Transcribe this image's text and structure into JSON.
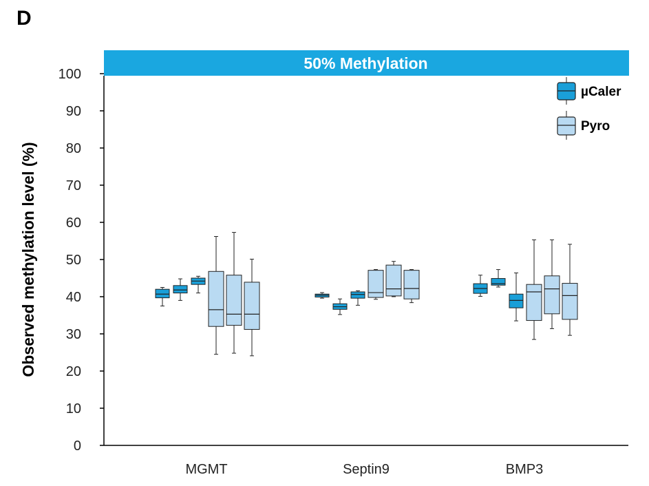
{
  "panel_label": "D",
  "colors": {
    "banner": "#1aa7e0",
    "ucaler": "#1a9fd8",
    "pyro": "#b9daf2",
    "stroke": "#222222",
    "axis": "#000000"
  },
  "chart_data": {
    "type": "box",
    "title": "50% Methylation",
    "ylabel": "Observed methylation level (%)",
    "xlabel": "",
    "ylim": [
      0,
      100
    ],
    "yticks": [
      0,
      10,
      20,
      30,
      40,
      50,
      60,
      70,
      80,
      90,
      100
    ],
    "categories": [
      "MGMT",
      "Septin9",
      "BMP3"
    ],
    "legend": [
      {
        "name": "µCaler",
        "color": "#1a9fd8"
      },
      {
        "name": "Pyro",
        "color": "#b9daf2"
      }
    ],
    "groups": [
      {
        "category": "MGMT",
        "boxes": [
          {
            "series": "µCaler",
            "min": 37.5,
            "q1": 39.7,
            "median": 40.7,
            "q3": 42.0,
            "max": 42.5
          },
          {
            "series": "µCaler",
            "min": 39.0,
            "q1": 41.0,
            "median": 41.8,
            "q3": 43.0,
            "max": 44.8
          },
          {
            "series": "µCaler",
            "min": 41.0,
            "q1": 43.3,
            "median": 44.2,
            "q3": 45.0,
            "max": 45.5
          },
          {
            "series": "Pyro",
            "min": 24.5,
            "q1": 32.0,
            "median": 36.5,
            "q3": 46.8,
            "max": 56.2
          },
          {
            "series": "Pyro",
            "min": 24.8,
            "q1": 32.3,
            "median": 35.3,
            "q3": 45.8,
            "max": 57.3
          },
          {
            "series": "Pyro",
            "min": 24.1,
            "q1": 31.2,
            "median": 35.3,
            "q3": 43.9,
            "max": 50.1
          }
        ]
      },
      {
        "category": "Septin9",
        "boxes": [
          {
            "series": "µCaler",
            "min": 39.6,
            "q1": 39.9,
            "median": 40.4,
            "q3": 40.7,
            "max": 41.1
          },
          {
            "series": "µCaler",
            "min": 35.2,
            "q1": 36.6,
            "median": 37.3,
            "q3": 38.1,
            "max": 39.4
          },
          {
            "series": "µCaler",
            "min": 37.7,
            "q1": 39.6,
            "median": 40.6,
            "q3": 41.3,
            "max": 41.6
          },
          {
            "series": "Pyro",
            "min": 39.3,
            "q1": 39.8,
            "median": 41.1,
            "q3": 47.1,
            "max": 47.3
          },
          {
            "series": "Pyro",
            "min": 40.0,
            "q1": 40.2,
            "median": 42.1,
            "q3": 48.5,
            "max": 49.5
          },
          {
            "series": "Pyro",
            "min": 38.4,
            "q1": 39.4,
            "median": 42.2,
            "q3": 47.1,
            "max": 47.3
          }
        ]
      },
      {
        "category": "BMP3",
        "boxes": [
          {
            "series": "µCaler",
            "min": 40.1,
            "q1": 40.9,
            "median": 42.2,
            "q3": 43.5,
            "max": 45.8
          },
          {
            "series": "µCaler",
            "min": 42.6,
            "q1": 43.1,
            "median": 43.5,
            "q3": 44.9,
            "max": 47.3
          },
          {
            "series": "µCaler",
            "min": 33.5,
            "q1": 37.0,
            "median": 39.0,
            "q3": 40.7,
            "max": 46.4
          },
          {
            "series": "Pyro",
            "min": 28.5,
            "q1": 33.6,
            "median": 41.3,
            "q3": 43.3,
            "max": 55.3
          },
          {
            "series": "Pyro",
            "min": 31.4,
            "q1": 35.4,
            "median": 42.1,
            "q3": 45.6,
            "max": 55.3
          },
          {
            "series": "Pyro",
            "min": 29.6,
            "q1": 33.9,
            "median": 40.3,
            "q3": 43.6,
            "max": 54.1
          }
        ]
      }
    ]
  }
}
